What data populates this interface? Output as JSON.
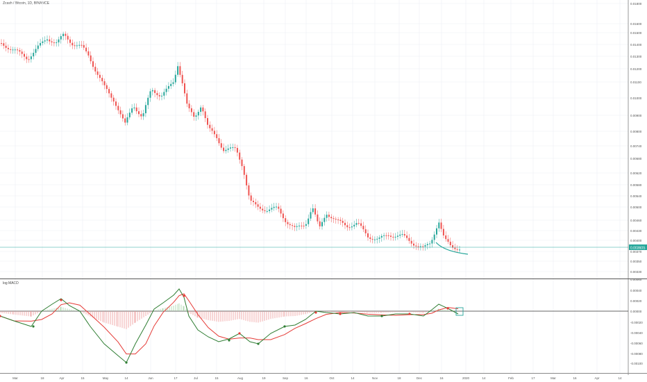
{
  "chart": {
    "title": "Zcash / Bitcoin, 1D, BINANCE",
    "price_label": "0.00360S",
    "price_label_bg": "#26a69a",
    "up_color": "#26a69a",
    "down_color": "#ef5350",
    "price_axis": [
      "0.01800",
      "0.01600",
      "0.01500",
      "0.01400",
      "0.01300",
      "0.01200",
      "0.01100",
      "0.01000",
      "0.00900",
      "0.00800",
      "0.00740",
      "0.00680",
      "0.00620",
      "0.00580",
      "0.00540",
      "0.00500",
      "0.00460",
      "0.00430",
      "0.00400",
      "0.00370",
      "0.00350",
      "0.00330"
    ],
    "x_axis": [
      "Mar",
      "18",
      "Apr",
      "15",
      "May",
      "14",
      "Jun",
      "17",
      "Jul",
      "15",
      "Aug",
      "19",
      "Sep",
      "16",
      "Oct",
      "14",
      "Nov",
      "18",
      "Dec",
      "16",
      "2020",
      "14",
      "Feb",
      "17",
      "Mar",
      "16",
      "Apr",
      "14"
    ]
  },
  "indicator": {
    "title": "log MACD",
    "axis": [
      "0.00060",
      "0.00040",
      "0.00020",
      "0.00000",
      "-0.00020",
      "-0.00040",
      "-0.00060",
      "-0.00080",
      "-0.00100"
    ],
    "macd_color": "#2e7d32",
    "signal_color": "#e53935"
  }
}
